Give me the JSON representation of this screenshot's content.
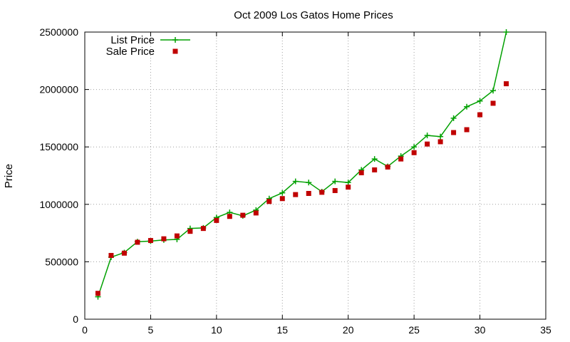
{
  "chart_data": {
    "type": "line",
    "title": "Oct 2009 Los Gatos Home Prices",
    "xlabel": "",
    "ylabel": "Price",
    "xlim": [
      0,
      35
    ],
    "ylim": [
      0,
      2500000
    ],
    "x_ticks": [
      0,
      5,
      10,
      15,
      20,
      25,
      30,
      35
    ],
    "y_ticks": [
      0,
      500000,
      1000000,
      1500000,
      2000000,
      2500000
    ],
    "x_tick_labels": [
      "0",
      "5",
      "10",
      "15",
      "20",
      "25",
      "30",
      "35"
    ],
    "y_tick_labels": [
      "0",
      "500000",
      "1000000",
      "1500000",
      "2000000",
      "2500000"
    ],
    "grid": true,
    "legend_position": "top-left",
    "x": [
      1,
      2,
      3,
      4,
      5,
      6,
      7,
      8,
      9,
      10,
      11,
      12,
      13,
      14,
      15,
      16,
      17,
      18,
      19,
      20,
      21,
      22,
      23,
      24,
      25,
      26,
      27,
      28,
      29,
      30,
      31,
      32
    ],
    "series": [
      {
        "name": "List Price",
        "style": "line-plus",
        "color": "#00a000",
        "values": [
          195000,
          540000,
          580000,
          675000,
          680000,
          690000,
          695000,
          790000,
          795000,
          885000,
          930000,
          900000,
          950000,
          1050000,
          1100000,
          1200000,
          1190000,
          1110000,
          1200000,
          1190000,
          1300000,
          1395000,
          1330000,
          1420000,
          1500000,
          1600000,
          1590000,
          1750000,
          1850000,
          1900000,
          1990000,
          2500000
        ]
      },
      {
        "name": "Sale Price",
        "style": "square",
        "color": "#c00000",
        "values": [
          225000,
          555000,
          575000,
          670000,
          685000,
          700000,
          725000,
          765000,
          790000,
          860000,
          895000,
          905000,
          925000,
          1025000,
          1050000,
          1085000,
          1095000,
          1105000,
          1120000,
          1150000,
          1275000,
          1300000,
          1325000,
          1395000,
          1450000,
          1525000,
          1545000,
          1625000,
          1650000,
          1780000,
          1880000,
          2050000
        ]
      }
    ]
  }
}
